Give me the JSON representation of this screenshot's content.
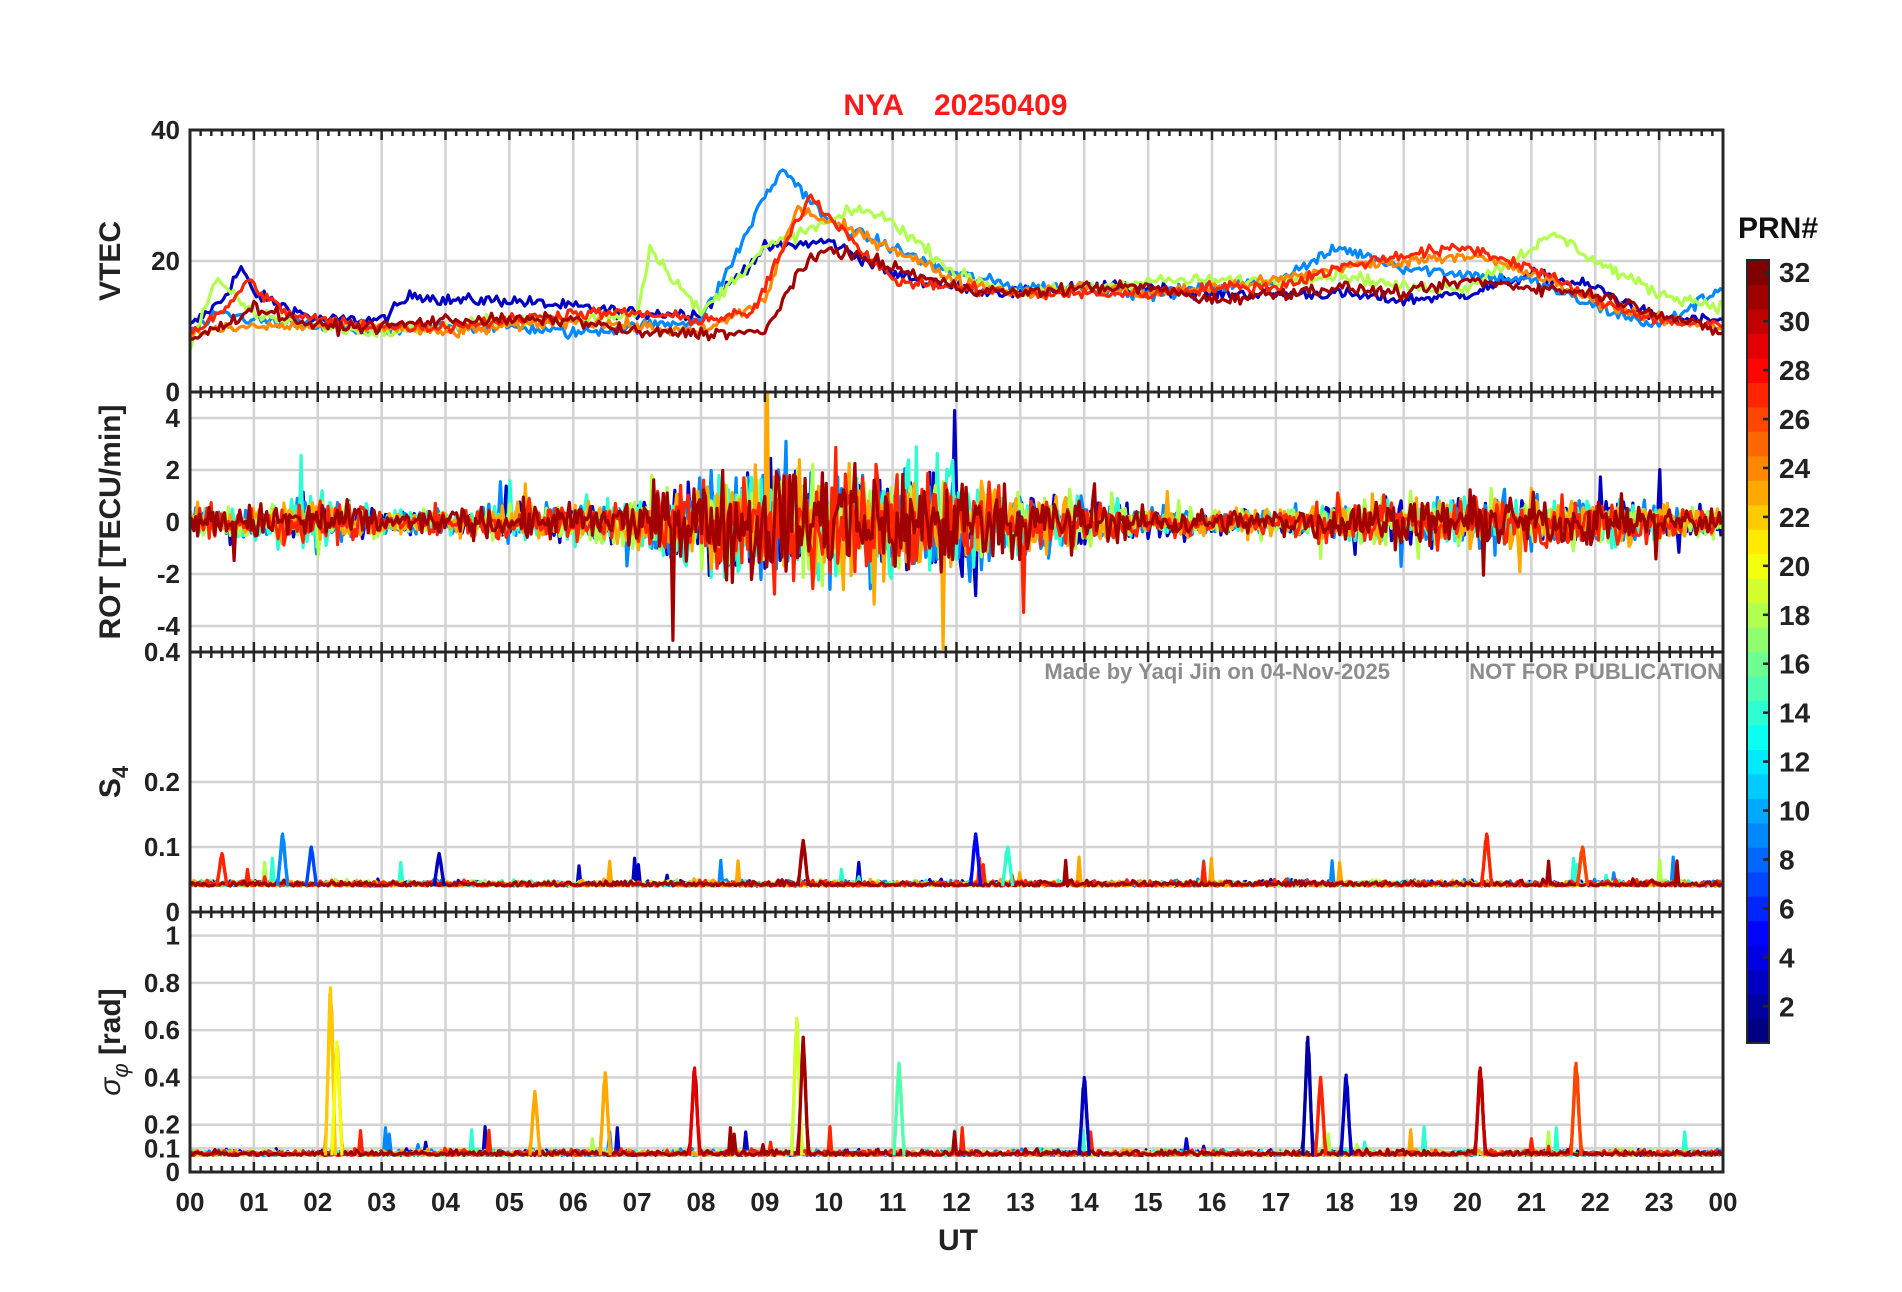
{
  "figure": {
    "station": "NYA",
    "date": "20250409",
    "xlabel": "UT",
    "x_ticks": [
      "00",
      "01",
      "02",
      "03",
      "04",
      "05",
      "06",
      "07",
      "08",
      "09",
      "10",
      "11",
      "12",
      "13",
      "14",
      "15",
      "16",
      "17",
      "18",
      "19",
      "20",
      "21",
      "22",
      "23",
      "00"
    ],
    "watermark_left": "Made by Yaqi Jin on 04-Nov-2025",
    "watermark_right": "NOT FOR PUBLICATION",
    "colorbar": {
      "title": "PRN#",
      "range": [
        1,
        32
      ],
      "ticks": [
        "2",
        "4",
        "6",
        "8",
        "10",
        "12",
        "14",
        "16",
        "18",
        "20",
        "22",
        "24",
        "26",
        "28",
        "30",
        "32"
      ],
      "colormap": "jet"
    }
  },
  "chart_data": [
    {
      "type": "line",
      "panel": "VTEC",
      "ylabel": "VTEC",
      "ylim": [
        0,
        40
      ],
      "y_ticks": [
        "0",
        "20",
        "40"
      ],
      "xlim_hours": [
        0,
        24
      ],
      "series_color_by": "PRN",
      "series": [
        {
          "prn": 3,
          "x": [
            0,
            0.5,
            0.8,
            1,
            2,
            3,
            3.5,
            4,
            5,
            6,
            7,
            8,
            9,
            10,
            11,
            12,
            13,
            14,
            15,
            16,
            17,
            18,
            19,
            20,
            21,
            22,
            23,
            24
          ],
          "y": [
            10,
            14,
            19,
            15,
            11,
            11,
            15,
            14,
            14,
            13,
            12,
            12,
            22,
            23,
            18,
            16,
            15,
            16,
            16,
            15,
            15,
            15,
            14,
            15,
            18,
            16,
            11,
            11
          ]
        },
        {
          "prn": 9,
          "x": [
            0,
            0.5,
            1,
            2,
            3,
            4,
            5,
            6,
            7,
            8,
            8.5,
            9,
            9.3,
            10,
            11,
            12,
            13,
            14,
            15,
            16,
            17,
            18,
            19,
            20,
            21,
            22,
            23,
            24
          ],
          "y": [
            9,
            12,
            11,
            10,
            9,
            10,
            10,
            9,
            10,
            11,
            20,
            30,
            34,
            26,
            22,
            18,
            16,
            16,
            15,
            16,
            17,
            22,
            19,
            18,
            17,
            13,
            10,
            16
          ]
        },
        {
          "prn": 18,
          "x": [
            0,
            0.4,
            1,
            2,
            3,
            4,
            5,
            6,
            7,
            7.2,
            8,
            9,
            10,
            10.5,
            11,
            12,
            13,
            14,
            15,
            16,
            17,
            18,
            19,
            20,
            21,
            21.4,
            22,
            23,
            24
          ],
          "y": [
            7,
            17,
            12,
            10,
            9,
            10,
            11,
            11,
            12,
            22,
            12,
            22,
            26,
            28,
            26,
            18,
            15,
            16,
            17,
            17,
            17,
            18,
            16,
            16,
            22,
            24,
            20,
            15,
            13
          ]
        },
        {
          "prn": 24,
          "x": [
            0,
            1,
            2,
            3,
            4,
            5,
            6,
            7,
            8,
            9,
            9.5,
            10,
            11,
            12,
            13,
            14,
            15,
            16,
            17,
            18,
            19,
            20,
            21,
            22,
            23,
            24
          ],
          "y": [
            9,
            10,
            10,
            10,
            9,
            10,
            11,
            10,
            9,
            14,
            28,
            26,
            22,
            17,
            15,
            16,
            15,
            16,
            17,
            19,
            20,
            21,
            18,
            14,
            11,
            10
          ]
        },
        {
          "prn": 27,
          "x": [
            0,
            0.5,
            0.9,
            1.5,
            2,
            3,
            4,
            5,
            6,
            7,
            8,
            8.8,
            9.3,
            9.7,
            10,
            10.5,
            11,
            12,
            13,
            14,
            15,
            16,
            17,
            18,
            19,
            20,
            21,
            22,
            23,
            24
          ],
          "y": [
            9,
            12,
            17,
            12,
            11,
            10,
            10,
            11,
            12,
            12,
            11,
            12,
            22,
            30,
            27,
            22,
            17,
            16,
            15,
            15,
            15,
            16,
            16,
            19,
            21,
            22,
            19,
            14,
            11,
            10
          ]
        },
        {
          "prn": 31,
          "x": [
            0,
            0.5,
            1,
            2,
            3,
            4,
            5,
            6,
            7,
            8,
            9,
            9.5,
            10,
            11,
            12,
            13,
            14,
            15,
            16,
            17,
            18,
            19,
            20,
            21,
            22,
            23,
            24
          ],
          "y": [
            8,
            10,
            13,
            10,
            10,
            11,
            11,
            11,
            9,
            9,
            9,
            18,
            22,
            19,
            16,
            15,
            16,
            16,
            14,
            15,
            16,
            15,
            17,
            16,
            15,
            12,
            9
          ]
        }
      ]
    },
    {
      "type": "line",
      "panel": "ROT",
      "ylabel": "ROT [TECU/min]",
      "ylim": [
        -5,
        5
      ],
      "y_ticks": [
        "-4",
        "-2",
        "0",
        "2",
        "4"
      ],
      "top_tick_label": "0",
      "xlim_hours": [
        0,
        24
      ],
      "series_color_by": "PRN",
      "note": "dense noise-like fluctuations; enhanced variability 08-12 UT with spikes exceeding ±4 TECU/min",
      "envelope": {
        "x": [
          0,
          1,
          2,
          3,
          4,
          5,
          6,
          7,
          8,
          9,
          10,
          11,
          12,
          13,
          14,
          15,
          16,
          17,
          18,
          19,
          20,
          21,
          22,
          23,
          24
        ],
        "amplitude": [
          1.2,
          1.5,
          2,
          1,
          1,
          1.5,
          1.5,
          2,
          4,
          5,
          5,
          5,
          4,
          2.5,
          2,
          1.2,
          1,
          1,
          1.8,
          1.8,
          2,
          2,
          1.8,
          1.5,
          1
        ]
      }
    },
    {
      "type": "line",
      "panel": "S4",
      "ylabel": "S4",
      "ylim": [
        0,
        0.4
      ],
      "y_ticks": [
        "0",
        "0.1",
        "0.2"
      ],
      "top_tick_label": "0.4",
      "xlim_hours": [
        0,
        24
      ],
      "series_color_by": "PRN",
      "baseline": 0.04,
      "peaks": [
        {
          "x": 0.5,
          "y": 0.09,
          "prn": 27
        },
        {
          "x": 1.45,
          "y": 0.12,
          "prn": 9
        },
        {
          "x": 1.9,
          "y": 0.1,
          "prn": 7
        },
        {
          "x": 3.9,
          "y": 0.09,
          "prn": 3
        },
        {
          "x": 9.6,
          "y": 0.11,
          "prn": 31
        },
        {
          "x": 12.3,
          "y": 0.12,
          "prn": 5
        },
        {
          "x": 12.8,
          "y": 0.1,
          "prn": 14
        },
        {
          "x": 20.3,
          "y": 0.12,
          "prn": 27
        },
        {
          "x": 21.8,
          "y": 0.1,
          "prn": 26
        }
      ]
    },
    {
      "type": "line",
      "panel": "sigma_phi",
      "ylabel": "σφ [rad]",
      "ylim": [
        0,
        1.1
      ],
      "y_ticks": [
        "0",
        "0.1",
        "0.2",
        "0.4",
        "0.6",
        "0.8",
        "1"
      ],
      "xlim_hours": [
        0,
        24
      ],
      "series_color_by": "PRN",
      "baseline": 0.07,
      "peaks": [
        {
          "x": 2.2,
          "y": 0.78,
          "prn": 22
        },
        {
          "x": 2.3,
          "y": 0.55,
          "prn": 20
        },
        {
          "x": 5.4,
          "y": 0.34,
          "prn": 23
        },
        {
          "x": 6.5,
          "y": 0.42,
          "prn": 23
        },
        {
          "x": 7.9,
          "y": 0.44,
          "prn": 29
        },
        {
          "x": 9.5,
          "y": 0.65,
          "prn": 19
        },
        {
          "x": 9.6,
          "y": 0.57,
          "prn": 31
        },
        {
          "x": 11.1,
          "y": 0.46,
          "prn": 15
        },
        {
          "x": 14.0,
          "y": 0.4,
          "prn": 3
        },
        {
          "x": 17.5,
          "y": 0.57,
          "prn": 2
        },
        {
          "x": 17.7,
          "y": 0.4,
          "prn": 27
        },
        {
          "x": 18.1,
          "y": 0.41,
          "prn": 3
        },
        {
          "x": 20.2,
          "y": 0.44,
          "prn": 30
        },
        {
          "x": 21.7,
          "y": 0.46,
          "prn": 26
        }
      ]
    }
  ]
}
